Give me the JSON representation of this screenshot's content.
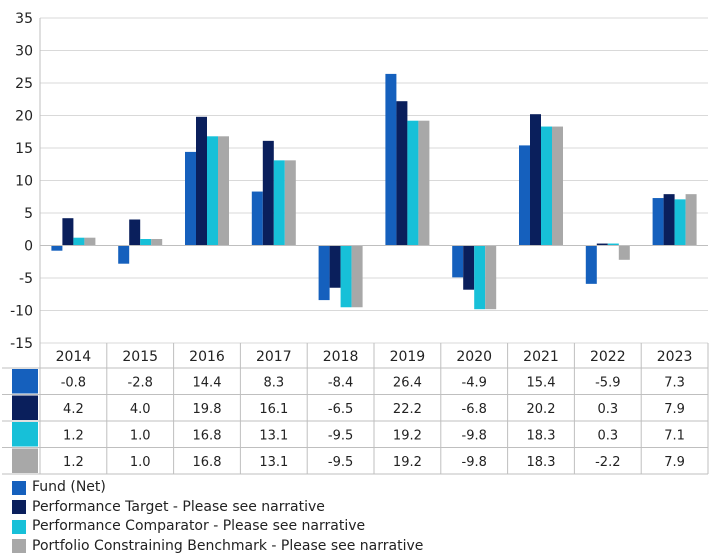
{
  "chart_data": {
    "type": "bar",
    "categories": [
      "2014",
      "2015",
      "2016",
      "2017",
      "2018",
      "2019",
      "2020",
      "2021",
      "2022",
      "2023"
    ],
    "series": [
      {
        "name": "Fund (Net)",
        "color": "#1560bd",
        "values": [
          -0.8,
          -2.8,
          14.4,
          8.3,
          -8.4,
          26.4,
          -4.9,
          15.4,
          -5.9,
          7.3
        ],
        "labels": [
          "-0.8",
          "-2.8",
          "14.4",
          "8.3",
          "-8.4",
          "26.4",
          "-4.9",
          "15.4",
          "-5.9",
          "7.3"
        ]
      },
      {
        "name": "Performance Target - Please see narrative",
        "color": "#0a1f5c",
        "values": [
          4.2,
          4.0,
          19.8,
          16.1,
          -6.5,
          22.2,
          -6.8,
          20.2,
          0.3,
          7.9
        ],
        "labels": [
          "4.2",
          "4.0",
          "19.8",
          "16.1",
          "-6.5",
          "22.2",
          "-6.8",
          "20.2",
          "0.3",
          "7.9"
        ]
      },
      {
        "name": "Performance Comparator - Please see narrative",
        "color": "#17c0d8",
        "values": [
          1.2,
          1.0,
          16.8,
          13.1,
          -9.5,
          19.2,
          -9.8,
          18.3,
          0.3,
          7.1
        ],
        "labels": [
          "1.2",
          "1.0",
          "16.8",
          "13.1",
          "-9.5",
          "19.2",
          "-9.8",
          "18.3",
          "0.3",
          "7.1"
        ]
      },
      {
        "name": "Portfolio Constraining Benchmark - Please see narrative",
        "color": "#a8a8a8",
        "values": [
          1.2,
          1.0,
          16.8,
          13.1,
          -9.5,
          19.2,
          -9.8,
          18.3,
          -2.2,
          7.9
        ],
        "labels": [
          "1.2",
          "1.0",
          "16.8",
          "13.1",
          "-9.5",
          "19.2",
          "-9.8",
          "18.3",
          "-2.2",
          "7.9"
        ]
      }
    ],
    "ylim": [
      -15,
      35
    ],
    "yticks": [
      -15,
      -10,
      -5,
      0,
      5,
      10,
      15,
      20,
      25,
      30,
      35
    ],
    "grid": true,
    "legend": "bottom-left"
  }
}
